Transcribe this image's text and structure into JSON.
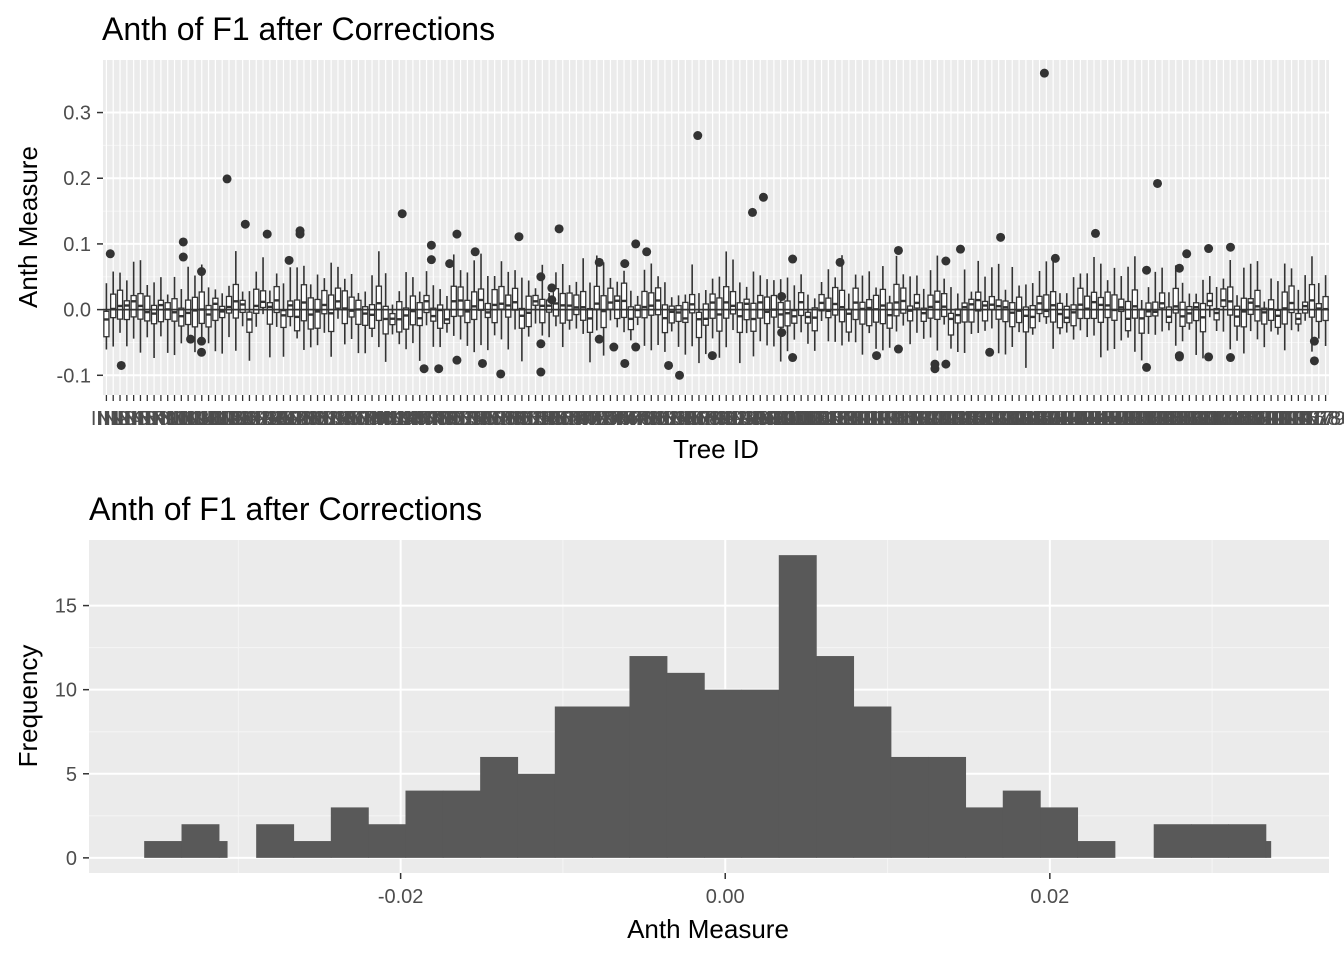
{
  "colors": {
    "panel_background": "#ebebeb",
    "grid_major": "#ffffff",
    "grid_minor": "#f5f5f5",
    "box_stroke": "#333333",
    "outlier": "#333333",
    "bar_fill": "#595959",
    "tick_label": "#4d4d4d",
    "text": "#000000"
  },
  "chart_data": [
    {
      "type": "box",
      "title": "Anth of F1 after Corrections",
      "xlabel": "Tree ID",
      "ylabel": "Anth Measure",
      "ylim": [
        -0.13,
        0.38
      ],
      "yticks": [
        -0.1,
        0.0,
        0.1,
        0.2,
        0.3
      ],
      "ytick_labels": [
        "-0.1",
        "0.0",
        "0.1",
        "0.2",
        "0.3"
      ],
      "grid": true,
      "category_count": 180,
      "category_label_prefix": "IN",
      "reference_line_y": 0.0,
      "outliers": [
        {
          "x": 2,
          "y": 0.085
        },
        {
          "x": 5,
          "y": -0.085
        },
        {
          "x": 22,
          "y": 0.103
        },
        {
          "x": 22,
          "y": 0.08
        },
        {
          "x": 24,
          "y": -0.045
        },
        {
          "x": 27,
          "y": 0.058
        },
        {
          "x": 27,
          "y": -0.048
        },
        {
          "x": 27,
          "y": -0.065
        },
        {
          "x": 34,
          "y": 0.199
        },
        {
          "x": 39,
          "y": 0.13
        },
        {
          "x": 45,
          "y": 0.115
        },
        {
          "x": 51,
          "y": 0.075
        },
        {
          "x": 54,
          "y": 0.12
        },
        {
          "x": 54,
          "y": 0.115
        },
        {
          "x": 82,
          "y": 0.146
        },
        {
          "x": 88,
          "y": -0.09
        },
        {
          "x": 90,
          "y": 0.098
        },
        {
          "x": 90,
          "y": 0.076
        },
        {
          "x": 92,
          "y": -0.09
        },
        {
          "x": 95,
          "y": 0.07
        },
        {
          "x": 97,
          "y": 0.115
        },
        {
          "x": 97,
          "y": -0.077
        },
        {
          "x": 102,
          "y": 0.088
        },
        {
          "x": 104,
          "y": -0.082
        },
        {
          "x": 109,
          "y": -0.098
        },
        {
          "x": 114,
          "y": 0.111
        },
        {
          "x": 120,
          "y": 0.05
        },
        {
          "x": 120,
          "y": -0.052
        },
        {
          "x": 120,
          "y": -0.095
        },
        {
          "x": 123,
          "y": 0.033
        },
        {
          "x": 123,
          "y": 0.015
        },
        {
          "x": 125,
          "y": 0.123
        },
        {
          "x": 136,
          "y": 0.072
        },
        {
          "x": 136,
          "y": -0.045
        },
        {
          "x": 140,
          "y": -0.057
        },
        {
          "x": 143,
          "y": 0.07
        },
        {
          "x": 143,
          "y": -0.082
        },
        {
          "x": 146,
          "y": 0.1
        },
        {
          "x": 146,
          "y": -0.057
        },
        {
          "x": 149,
          "y": 0.088
        },
        {
          "x": 155,
          "y": -0.085
        },
        {
          "x": 158,
          "y": -0.1
        },
        {
          "x": 163,
          "y": 0.265
        },
        {
          "x": 167,
          "y": -0.07
        },
        {
          "x": 178,
          "y": 0.148
        },
        {
          "x": 181,
          "y": 0.171
        },
        {
          "x": 186,
          "y": 0.02
        },
        {
          "x": 186,
          "y": -0.035
        },
        {
          "x": 189,
          "y": 0.077
        },
        {
          "x": 189,
          "y": -0.073
        },
        {
          "x": 202,
          "y": 0.072
        },
        {
          "x": 212,
          "y": -0.07
        },
        {
          "x": 218,
          "y": 0.09
        },
        {
          "x": 218,
          "y": -0.06
        },
        {
          "x": 228,
          "y": -0.09
        },
        {
          "x": 228,
          "y": -0.083
        },
        {
          "x": 231,
          "y": 0.074
        },
        {
          "x": 231,
          "y": -0.083
        },
        {
          "x": 235,
          "y": 0.092
        },
        {
          "x": 243,
          "y": -0.065
        },
        {
          "x": 246,
          "y": 0.11
        },
        {
          "x": 258,
          "y": 0.36
        },
        {
          "x": 261,
          "y": 0.078
        },
        {
          "x": 272,
          "y": 0.116
        },
        {
          "x": 286,
          "y": -0.088
        },
        {
          "x": 289,
          "y": 0.192
        },
        {
          "x": 286,
          "y": 0.06
        },
        {
          "x": 295,
          "y": 0.063
        },
        {
          "x": 295,
          "y": -0.07
        },
        {
          "x": 295,
          "y": -0.072
        },
        {
          "x": 297,
          "y": 0.085
        },
        {
          "x": 303,
          "y": 0.093
        },
        {
          "x": 303,
          "y": -0.072
        },
        {
          "x": 309,
          "y": 0.095
        },
        {
          "x": 309,
          "y": -0.073
        },
        {
          "x": 332,
          "y": -0.048
        },
        {
          "x": 332,
          "y": -0.078
        }
      ]
    },
    {
      "type": "bar",
      "title": "Anth of F1 after Corrections",
      "xlabel": "Anth Measure",
      "ylabel": "Frequency",
      "xlim": [
        -0.0392,
        0.0372
      ],
      "ylim": [
        -0.9,
        18.9
      ],
      "xticks": [
        -0.02,
        0.0,
        0.02
      ],
      "xtick_labels": [
        "-0.02",
        "0.00",
        "0.02"
      ],
      "yticks": [
        0,
        5,
        10,
        15
      ],
      "ytick_labels": [
        "0",
        "5",
        "10",
        "15"
      ],
      "grid": true,
      "bins": [
        {
          "x0": -0.0358,
          "x1": -0.0335,
          "count": 1
        },
        {
          "x0": -0.0335,
          "x1": -0.0312,
          "count": 2
        },
        {
          "x0": -0.0312,
          "x1": -0.0307,
          "count": 1
        },
        {
          "x0": -0.0289,
          "x1": -0.0266,
          "count": 2
        },
        {
          "x0": -0.0266,
          "x1": -0.0243,
          "count": 1
        },
        {
          "x0": -0.0243,
          "x1": -0.022,
          "count": 3
        },
        {
          "x0": -0.022,
          "x1": -0.0197,
          "count": 2
        },
        {
          "x0": -0.0197,
          "x1": -0.0174,
          "count": 4
        },
        {
          "x0": -0.0174,
          "x1": -0.0151,
          "count": 4
        },
        {
          "x0": -0.0151,
          "x1": -0.0128,
          "count": 6
        },
        {
          "x0": -0.0128,
          "x1": -0.0105,
          "count": 5
        },
        {
          "x0": -0.0105,
          "x1": -0.0082,
          "count": 9
        },
        {
          "x0": -0.0082,
          "x1": -0.0059,
          "count": 9
        },
        {
          "x0": -0.0059,
          "x1": -0.0036,
          "count": 12
        },
        {
          "x0": -0.0036,
          "x1": -0.0013,
          "count": 11
        },
        {
          "x0": -0.0013,
          "x1": 0.001,
          "count": 10
        },
        {
          "x0": 0.001,
          "x1": 0.0033,
          "count": 10
        },
        {
          "x0": 0.0033,
          "x1": 0.0056,
          "count": 18
        },
        {
          "x0": 0.0056,
          "x1": 0.0079,
          "count": 12
        },
        {
          "x0": 0.0079,
          "x1": 0.0102,
          "count": 9
        },
        {
          "x0": 0.0102,
          "x1": 0.0125,
          "count": 6
        },
        {
          "x0": 0.0125,
          "x1": 0.0148,
          "count": 6
        },
        {
          "x0": 0.0148,
          "x1": 0.0171,
          "count": 3
        },
        {
          "x0": 0.0171,
          "x1": 0.0194,
          "count": 4
        },
        {
          "x0": 0.0194,
          "x1": 0.0217,
          "count": 3
        },
        {
          "x0": 0.0217,
          "x1": 0.024,
          "count": 1
        },
        {
          "x0": 0.0264,
          "x1": 0.0287,
          "count": 2
        },
        {
          "x0": 0.0287,
          "x1": 0.031,
          "count": 2
        },
        {
          "x0": 0.031,
          "x1": 0.0333,
          "count": 2
        },
        {
          "x0": 0.0333,
          "x1": 0.0336,
          "count": 1
        }
      ]
    }
  ]
}
